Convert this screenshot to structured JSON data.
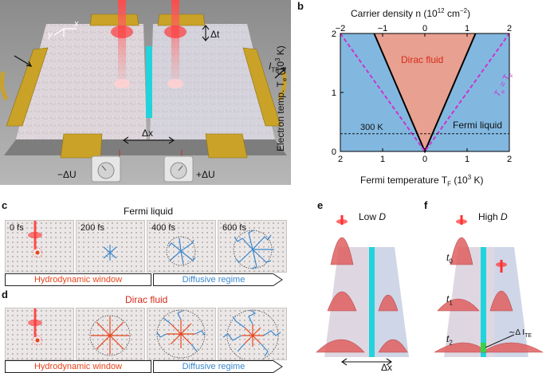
{
  "panels": {
    "a": {
      "label": "a",
      "axis_x": "x",
      "axis_y": "y",
      "delta_t": "Δt",
      "i_te": "I",
      "i_te_sub": "TE",
      "delta_x": "Δx",
      "left_voltage": "−ΔU",
      "right_voltage": "+ΔU"
    },
    "b": {
      "label": "b",
      "top_axis_title": "Carrier density n (10",
      "top_axis_exp": "12",
      "top_axis_unit": " cm",
      "top_axis_unit_exp": "−2",
      "top_axis_close": ")",
      "y_axis_title": "Electron temp. T",
      "y_axis_sub": "e",
      "y_axis_unit": " (10",
      "y_axis_exp": "3",
      "y_axis_close": " K)",
      "bottom_axis_title": "Fermi temperature T",
      "bottom_axis_sub": "F",
      "bottom_axis_unit": " (10",
      "bottom_axis_exp": "3",
      "bottom_axis_close": " K)",
      "region_dirac": "Dirac fluid",
      "region_fermi": "Fermi liquid",
      "line_300k": "300 K",
      "diag_label": "T",
      "diag_label_sub": "e",
      "diag_eq": " = T",
      "diag_label_sub2": "F"
    },
    "c": {
      "label": "c",
      "title": "Fermi liquid",
      "times": [
        "0 fs",
        "200 fs",
        "400 fs",
        "600 fs"
      ],
      "left_arrow": "Hydrodynamic window",
      "right_arrow": "Diffusive regime"
    },
    "d": {
      "label": "d",
      "title": "Dirac fluid",
      "left_arrow": "Hydrodynamic window",
      "right_arrow": "Diffusive regime"
    },
    "e": {
      "label": "e",
      "caption_prefix": "Low ",
      "caption_var": "D",
      "delta_x": "Δx"
    },
    "f": {
      "label": "f",
      "caption_prefix": "High ",
      "caption_var": "D",
      "t0": "t",
      "t0_sub": "0",
      "t1": "t",
      "t1_sub": "1",
      "t2": "t",
      "t2_sub": "2",
      "signal": "∼Δ I",
      "signal_sub": "TE"
    }
  },
  "colors": {
    "dirac_fill": "#e8a090",
    "fermi_fill": "#82b8e0",
    "diag_dashed": "#cc33cc",
    "hydro_orange": "#e8441a",
    "diffusive_blue": "#3a88cc",
    "title_red": "#d62a1a",
    "gold": "#c9a227",
    "cyan_gap": "#22d3dc"
  },
  "chart_data": {
    "type": "area",
    "title": "",
    "top_xlabel": "Carrier density n (10^12 cm^-2)",
    "top_xticks": [
      -2,
      -1,
      0,
      1,
      2
    ],
    "xlabel": "Fermi temperature T_F (10^3 K)",
    "xticks": [
      2,
      1,
      0,
      1,
      2
    ],
    "xlim": [
      -2,
      2
    ],
    "ylabel": "Electron temp. T_e (10^3 K)",
    "yticks": [
      0,
      1,
      2
    ],
    "ylim": [
      0,
      2
    ],
    "series": [
      {
        "name": "Dirac fluid boundary",
        "x": [
          -1.2,
          -0.6,
          0,
          0.6,
          1.2
        ],
        "y": [
          2,
          1,
          0,
          1,
          2
        ]
      },
      {
        "name": "T_e = T_F",
        "x": [
          -2,
          0,
          2
        ],
        "y": [
          2,
          0,
          2
        ]
      },
      {
        "name": "300 K",
        "x": [
          -2,
          2
        ],
        "y": [
          0.3,
          0.3
        ]
      }
    ],
    "regions": [
      "Dirac fluid",
      "Fermi liquid"
    ]
  }
}
